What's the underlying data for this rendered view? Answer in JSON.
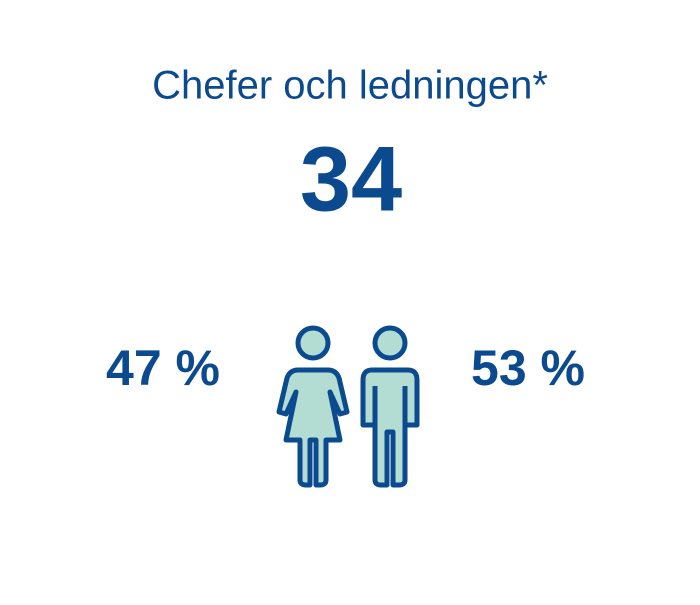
{
  "title": "Chefer och ledningen*",
  "total": "34",
  "women": "47 %",
  "men": "53 %"
}
